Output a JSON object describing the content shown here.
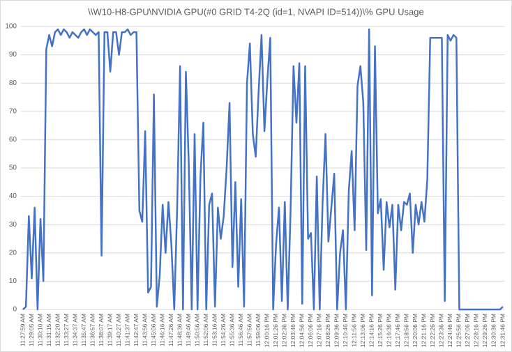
{
  "chart_data": {
    "type": "line",
    "title": "\\\\W10-H8-GPU\\NVIDIA GPU(#0 GRID T4-2Q (id=1, NVAPI ID=514))\\% GPU Usage",
    "categories": [
      "11:27:59 AM",
      null,
      null,
      "11:29:05 AM",
      null,
      null,
      "11:30:10 AM",
      null,
      null,
      "11:31:15 AM",
      null,
      null,
      "11:32:20 AM",
      null,
      null,
      "11:33:27 AM",
      null,
      null,
      "11:34:37 AM",
      null,
      null,
      "11:35:47 AM",
      null,
      null,
      "11:36:57 AM",
      null,
      null,
      "11:38:07 AM",
      null,
      null,
      "11:39:17 AM",
      null,
      null,
      "11:40:27 AM",
      null,
      null,
      "11:41:37 AM",
      null,
      null,
      "11:42:47 AM",
      null,
      null,
      "11:43:56 AM",
      null,
      null,
      "11:45:06 AM",
      null,
      null,
      "11:46:16 AM",
      null,
      null,
      "11:47:26 AM",
      null,
      null,
      "11:48:36 AM",
      null,
      null,
      "11:49:46 AM",
      null,
      null,
      "11:50:56 AM",
      null,
      null,
      "11:52:06 AM",
      null,
      null,
      "11:53:16 AM",
      null,
      null,
      "11:54:26 AM",
      null,
      null,
      "11:55:36 AM",
      null,
      null,
      "11:56:46 AM",
      null,
      null,
      "11:57:56 AM",
      null,
      null,
      "11:59:06 AM",
      null,
      null,
      "12:00:16 PM",
      null,
      null,
      "12:01:26 PM",
      null,
      null,
      "12:02:36 PM",
      null,
      null,
      "12:03:46 PM",
      null,
      null,
      "12:04:56 PM",
      null,
      null,
      "12:06:06 PM",
      null,
      null,
      "12:07:16 PM",
      null,
      null,
      "12:08:26 PM",
      null,
      null,
      "12:09:36 PM",
      null,
      null,
      "12:10:46 PM",
      null,
      null,
      "12:11:56 PM",
      null,
      null,
      "12:13:06 PM",
      null,
      null,
      "12:14:16 PM",
      null,
      null,
      "12:15:26 PM",
      null,
      null,
      "12:16:36 PM",
      null,
      null,
      "12:17:46 PM",
      null,
      null,
      "12:18:56 PM",
      null,
      null,
      "12:20:06 PM",
      null,
      null,
      "12:21:16 PM",
      null,
      null,
      "12:22:26 PM",
      null,
      null,
      "12:23:36 PM",
      null,
      null,
      "12:24:46 PM",
      null,
      null,
      "12:25:56 PM",
      null,
      null,
      "12:27:06 PM",
      null,
      null,
      "12:28:16 PM",
      null,
      null,
      "12:29:26 PM",
      null,
      null,
      "12:30:36 PM",
      null,
      null,
      "12:31:46 PM"
    ],
    "values": [
      0,
      1,
      33,
      11,
      36,
      0,
      32,
      10,
      92,
      97,
      93,
      98,
      99,
      97,
      99,
      98,
      96,
      98,
      97,
      96,
      98,
      99,
      97,
      99,
      98,
      97,
      98,
      19,
      98,
      98,
      84,
      98,
      98,
      90,
      98,
      98,
      99,
      97,
      98,
      98,
      35,
      31,
      63,
      6,
      8,
      76,
      1,
      12,
      37,
      20,
      38,
      23,
      0,
      36,
      86,
      0,
      84,
      51,
      0,
      62,
      0,
      47,
      66,
      0,
      37,
      41,
      1,
      36,
      25,
      33,
      50,
      73,
      15,
      45,
      8,
      39,
      1,
      80,
      94,
      62,
      54,
      77,
      97,
      63,
      81,
      96,
      0,
      23,
      36,
      3,
      38,
      0,
      35,
      86,
      66,
      87,
      2,
      86,
      25,
      27,
      0,
      47,
      0,
      38,
      62,
      24,
      36,
      48,
      0,
      20,
      28,
      0,
      42,
      56,
      28,
      79,
      86,
      73,
      21,
      99,
      5,
      93,
      34,
      39,
      14,
      38,
      29,
      37,
      7,
      37,
      28,
      38,
      37,
      41,
      20,
      37,
      30,
      38,
      31,
      46,
      96,
      96,
      96,
      96,
      96,
      3,
      97,
      95,
      97,
      96,
      0,
      0,
      0,
      0,
      0,
      0,
      0,
      0,
      0,
      0,
      0,
      0,
      0,
      0,
      0,
      1
    ],
    "color": "#4472c4",
    "ylim": [
      0,
      100
    ],
    "yticks": [
      0,
      10,
      20,
      30,
      40,
      50,
      60,
      70,
      80,
      90,
      100
    ],
    "grid": true
  }
}
